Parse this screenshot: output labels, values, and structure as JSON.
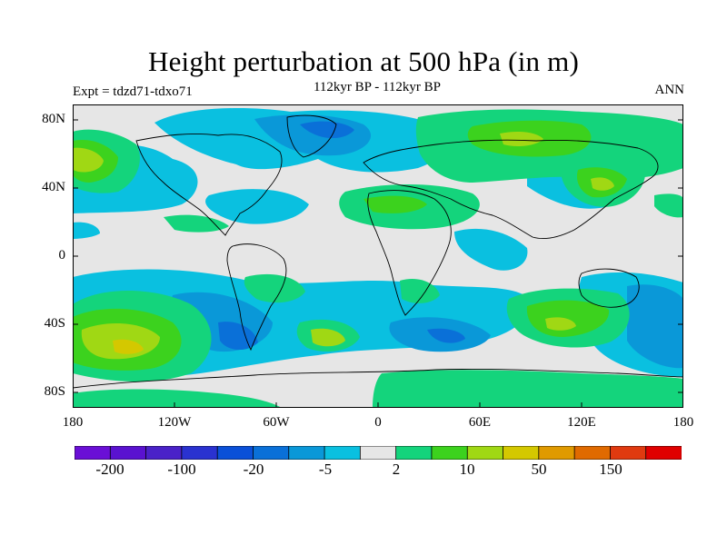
{
  "header": {
    "title": "Height perturbation at 500 hPa (in m)",
    "subtitle": "112kyr BP - 112kyr BP",
    "left_label": "Expt = tdzd71-tdxo71",
    "right_label": "ANN"
  },
  "map": {
    "y_ticks": [
      "80N",
      "40N",
      "0",
      "40S",
      "80S"
    ],
    "x_ticks": [
      "180",
      "120W",
      "60W",
      "0",
      "60E",
      "120E",
      "180"
    ],
    "background_color": "#e6e6e6",
    "coastline_color": "#000000"
  },
  "colorbar": {
    "colors": [
      "#6a0fd6",
      "#5a12d0",
      "#4a22c8",
      "#2a32d0",
      "#0a50d8",
      "#0a70d8",
      "#0a98d8",
      "#0ac0e0",
      "#e6e6e6",
      "#14d47c",
      "#3cd21e",
      "#a0d814",
      "#d4c800",
      "#e09a00",
      "#e06a00",
      "#e03a10",
      "#e00000"
    ],
    "labels": [
      "-200",
      "-100",
      "-20",
      "-5",
      "2",
      "10",
      "50",
      "150"
    ]
  }
}
